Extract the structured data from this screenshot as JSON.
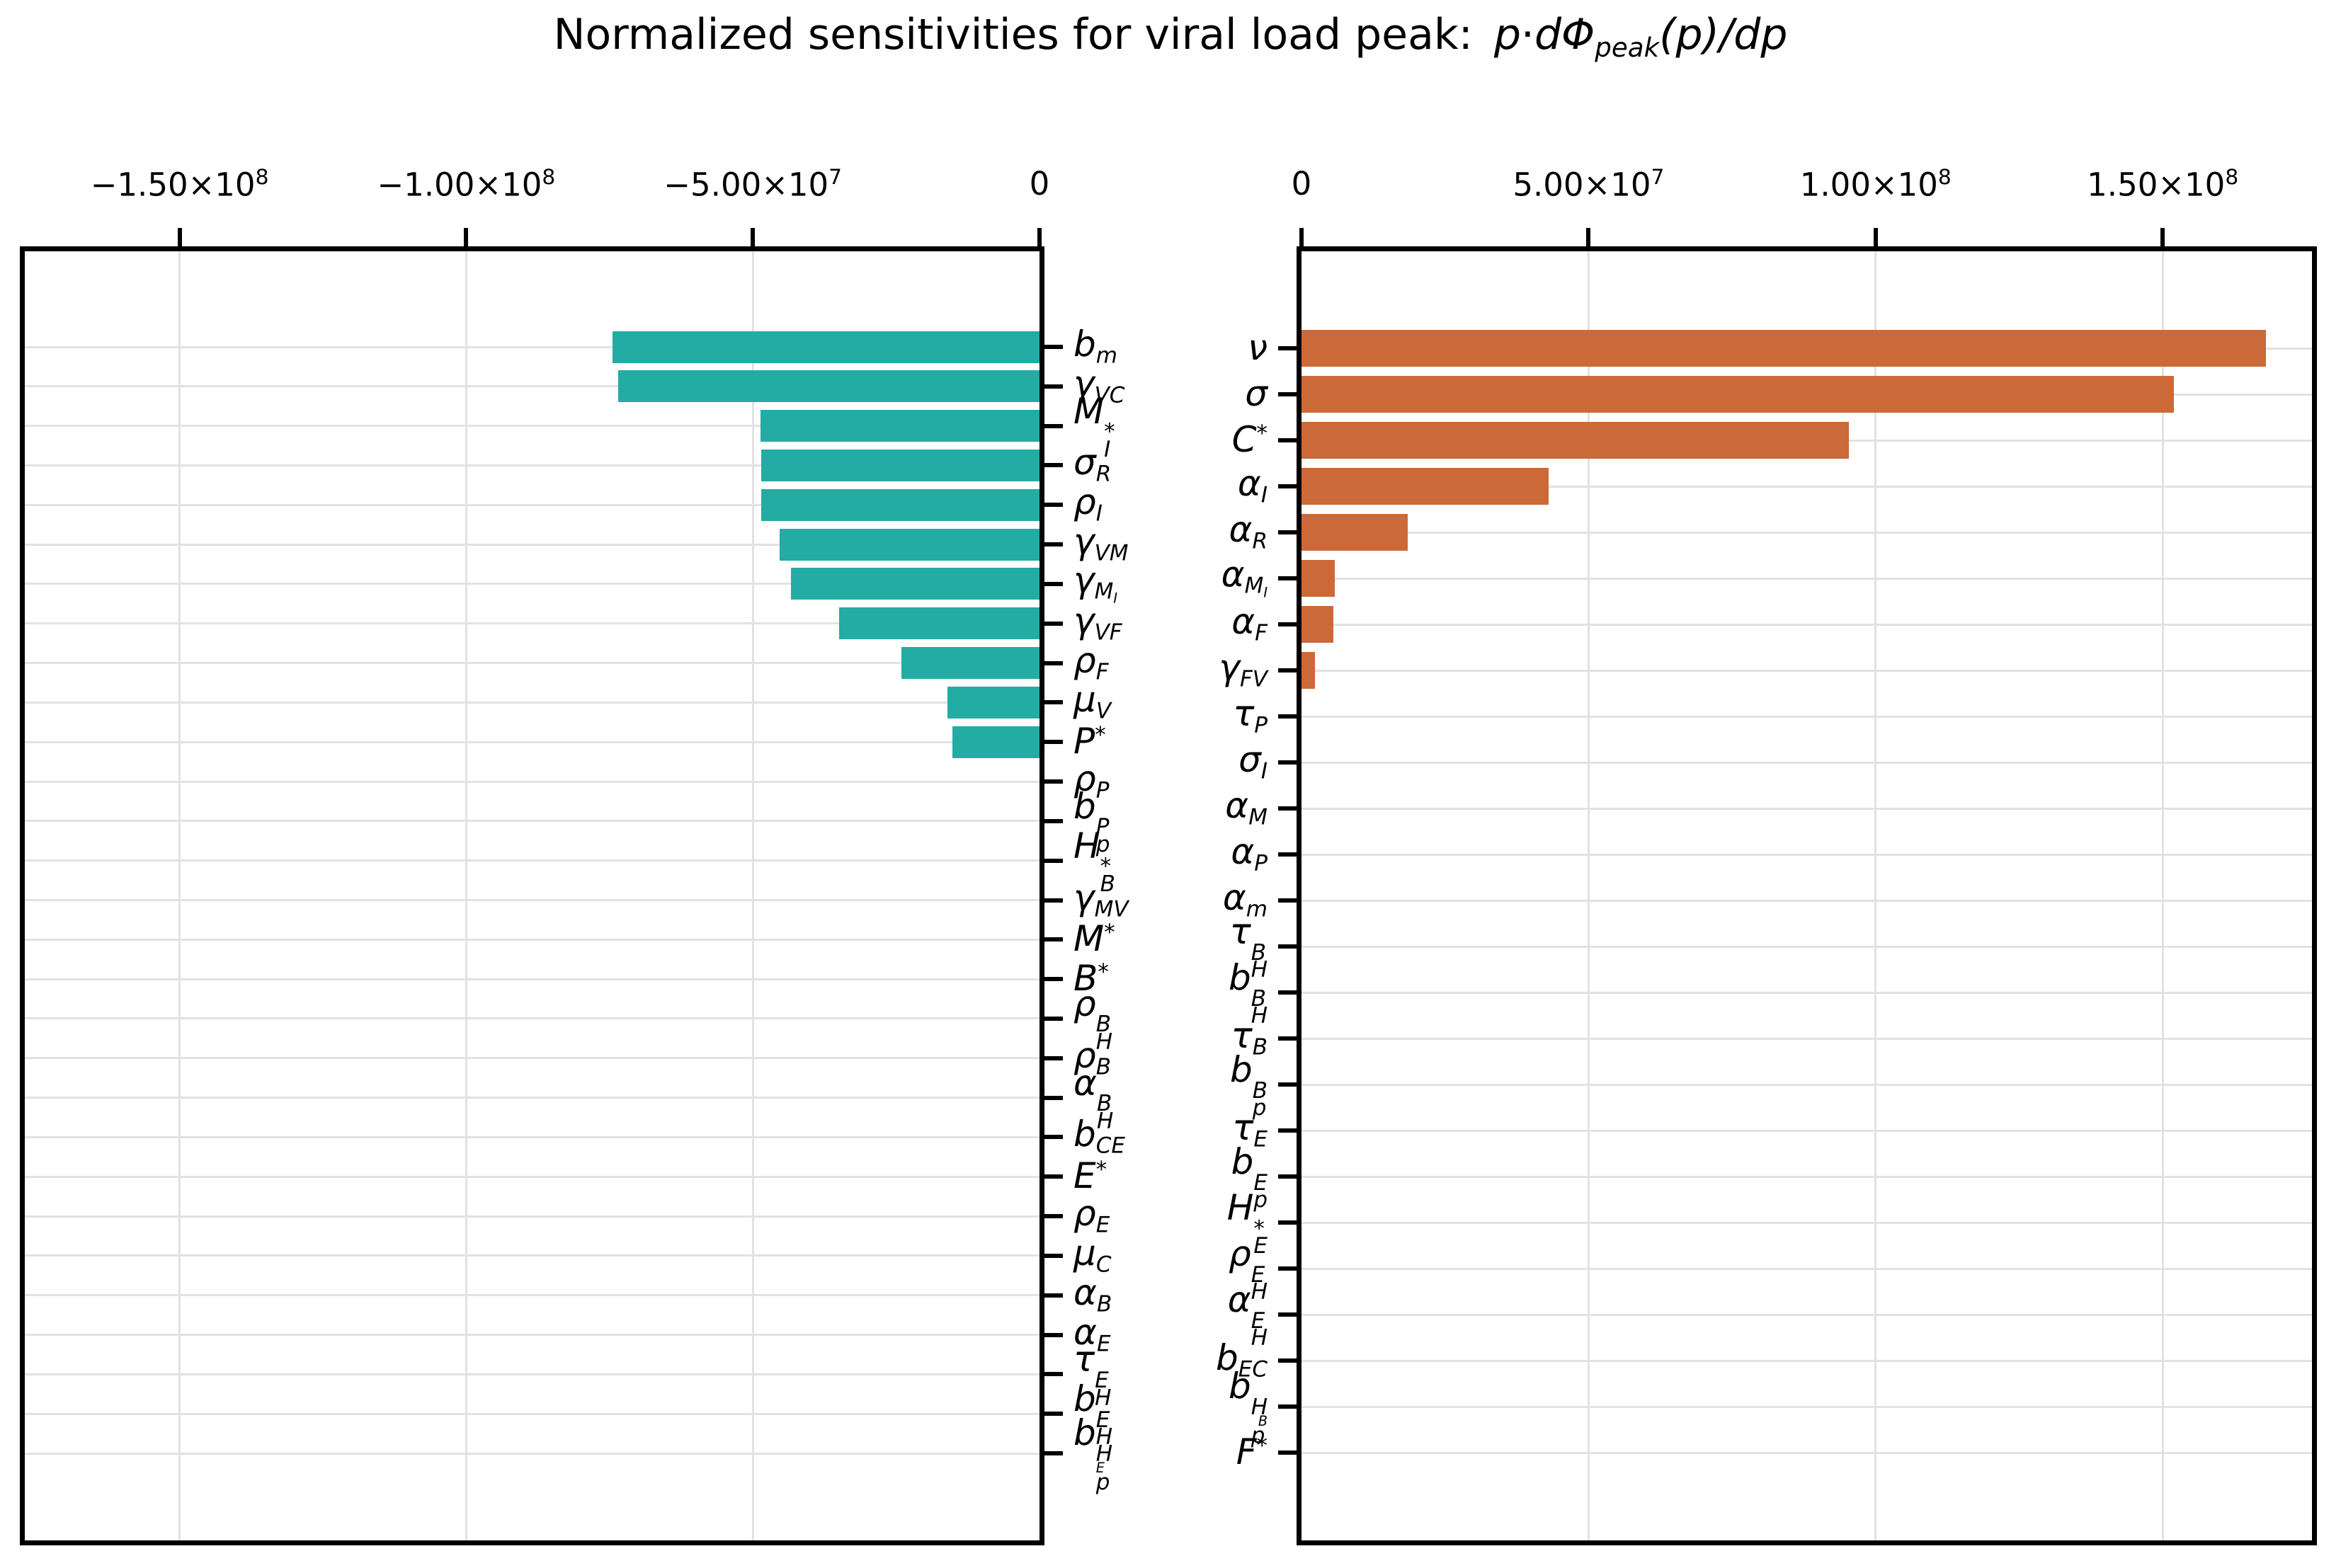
{
  "title": {
    "text": "Normalized sensitivities for viral load peak:",
    "math": "p⋅dΦ_{peak}(p)/dp"
  },
  "chart_data": [
    {
      "type": "bar",
      "panel": "left",
      "orientation": "horizontal",
      "bar_color": "#23aca4",
      "grid": true,
      "xlim": [
        -177000000,
        0
      ],
      "xticks": [
        {
          "value": -150000000,
          "mantissa": "−1.50×10",
          "exponent": "8"
        },
        {
          "value": -100000000,
          "mantissa": "−1.00×10",
          "exponent": "8"
        },
        {
          "value": -50000000,
          "mantissa": "−5.00×10",
          "exponent": "7"
        },
        {
          "value": 0,
          "mantissa": "0",
          "exponent": ""
        }
      ],
      "categories": [
        "b_m",
        "γ_{VC}",
        "M_I^*",
        "σ_R",
        "ρ_I",
        "γ_{VM}",
        "γ_{M_I}",
        "γ_{VF}",
        "ρ_F",
        "μ_V",
        "P^*",
        "ρ_P",
        "b_p^P",
        "H_B^*",
        "γ_{MV}",
        "M^*",
        "B^*",
        "ρ_H^B",
        "ρ_B",
        "α_H^B",
        "b_{CE}",
        "E^*",
        "ρ_E",
        "μ_C",
        "α_B",
        "α_E",
        "τ_H^E",
        "b_H^E",
        "b_p^{H_E}"
      ],
      "values": [
        -74500000,
        -73500000,
        -48700000,
        -48500000,
        -48600000,
        -45300000,
        -43300000,
        -34900000,
        -24100000,
        -16000000,
        -15200000,
        0,
        0,
        0,
        0,
        0,
        0,
        0,
        0,
        0,
        0,
        0,
        0,
        0,
        0,
        0,
        0,
        0,
        0
      ]
    },
    {
      "type": "bar",
      "panel": "right",
      "orientation": "horizontal",
      "bar_color": "#cb6a38",
      "grid": true,
      "xlim": [
        0,
        176000000
      ],
      "xticks": [
        {
          "value": 0,
          "mantissa": "0",
          "exponent": ""
        },
        {
          "value": 50000000,
          "mantissa": "5.00×10",
          "exponent": "7"
        },
        {
          "value": 100000000,
          "mantissa": "1.00×10",
          "exponent": "8"
        },
        {
          "value": 150000000,
          "mantissa": "1.50×10",
          "exponent": "8"
        }
      ],
      "categories": [
        "ν",
        "σ",
        "C^*",
        "α_I",
        "α_R",
        "α_{M_I}",
        "α_F",
        "γ_{FV}",
        "τ_P",
        "σ_I",
        "α_M",
        "α_P",
        "α_m",
        "τ_H^B",
        "b_H^B",
        "τ_B",
        "b_p^B",
        "τ_E",
        "b_p^E",
        "H_E^*",
        "ρ_H^E",
        "α_H^E",
        "b_{EC}",
        "b_p^{H_B}",
        "F^*"
      ],
      "values": [
        168000000,
        152000000,
        95400000,
        43000000,
        18500000,
        5800000,
        5600000,
        2300000,
        0,
        0,
        0,
        0,
        0,
        0,
        0,
        0,
        0,
        0,
        0,
        0,
        0,
        0,
        0,
        0,
        0
      ]
    }
  ]
}
